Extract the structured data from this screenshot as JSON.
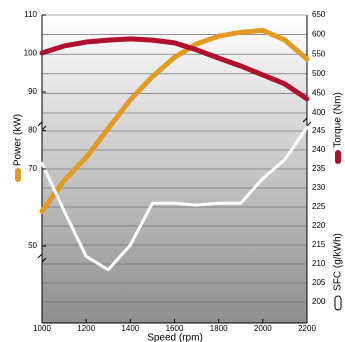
{
  "chart_data": {
    "type": "line",
    "x": [
      1000,
      1100,
      1200,
      1300,
      1400,
      1500,
      1600,
      1700,
      1800,
      1900,
      2000,
      2100,
      2200
    ],
    "xlim": [
      1000,
      2200
    ],
    "xticks": [
      1000,
      1200,
      1400,
      1600,
      1800,
      2000,
      2200
    ],
    "x_label": "Speed (rpm)",
    "ylim": [
      50,
      110
    ],
    "yticks": [
      50,
      70,
      80,
      90,
      100,
      110
    ],
    "y2lim": [
      400,
      650
    ],
    "y2ticks": [
      400,
      450,
      500,
      550,
      600,
      650
    ],
    "y3lim": [
      200,
      245
    ],
    "y3ticks": [
      200,
      205,
      210,
      215,
      220,
      225,
      230,
      235,
      240,
      245
    ],
    "series": [
      {
        "name": "Power (kW)",
        "color": "#e39a23",
        "axis": "y",
        "values": [
          59,
          67,
          73,
          80.5,
          88,
          94,
          99,
          102.5,
          104.5,
          105.5,
          106,
          103.5,
          98.5
        ]
      },
      {
        "name": "Torque (Nm)",
        "color": "#b0102e",
        "axis": "y2",
        "values": [
          553,
          571,
          581,
          586,
          589,
          586,
          579,
          561,
          540,
          520,
          497,
          474,
          436
        ]
      },
      {
        "name": "SFC (g/kWh)",
        "color": "#ffffff",
        "axis": "y3",
        "values": [
          236.5,
          224,
          212,
          208.5,
          215,
          226,
          226,
          225.5,
          226,
          226,
          232.5,
          237.5,
          246
        ]
      }
    ]
  }
}
